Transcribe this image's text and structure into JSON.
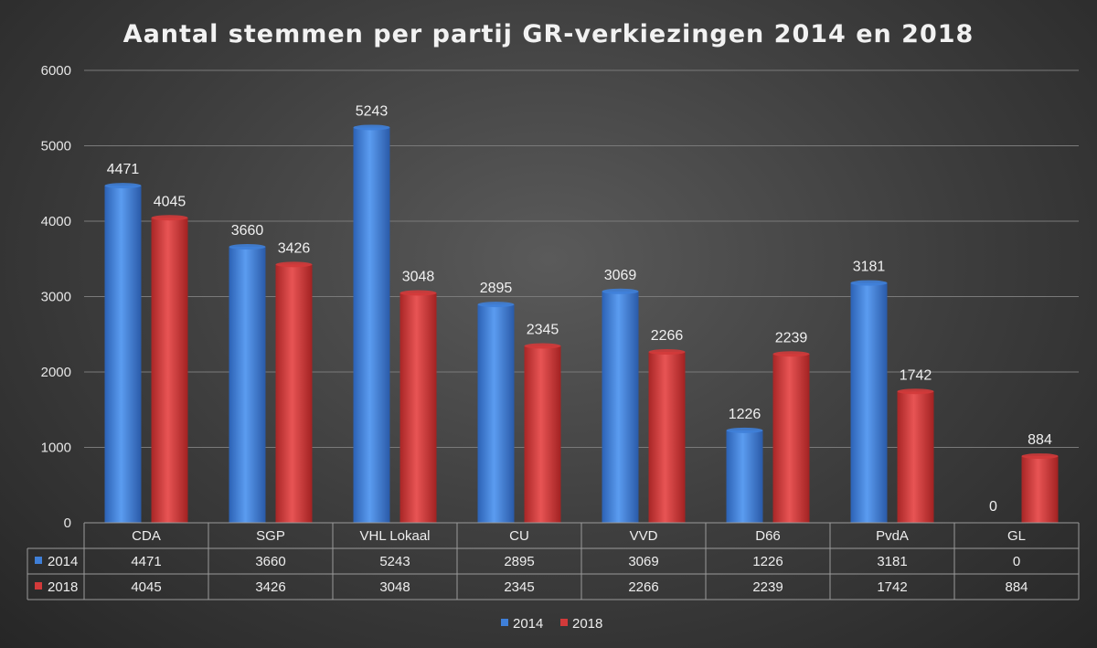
{
  "chart_data": {
    "type": "bar",
    "title": "Aantal stemmen per partij GR-verkiezingen 2014 en 2018",
    "categories": [
      "CDA",
      "SGP",
      "VHL Lokaal",
      "CU",
      "VVD",
      "D66",
      "PvdA",
      "GL"
    ],
    "series": [
      {
        "name": "2014",
        "values": [
          4471,
          3660,
          5243,
          2895,
          3069,
          1226,
          3181,
          0
        ]
      },
      {
        "name": "2018",
        "values": [
          4045,
          3426,
          3048,
          2345,
          2266,
          2239,
          1742,
          884
        ]
      }
    ],
    "ylim": [
      0,
      6000
    ],
    "yticks": [
      0,
      1000,
      2000,
      3000,
      4000,
      5000,
      6000
    ],
    "grid": true,
    "legend": "bottom",
    "data_table": true,
    "colors": {
      "2014": "#3f7fd8",
      "2018": "#d23a3a"
    }
  }
}
